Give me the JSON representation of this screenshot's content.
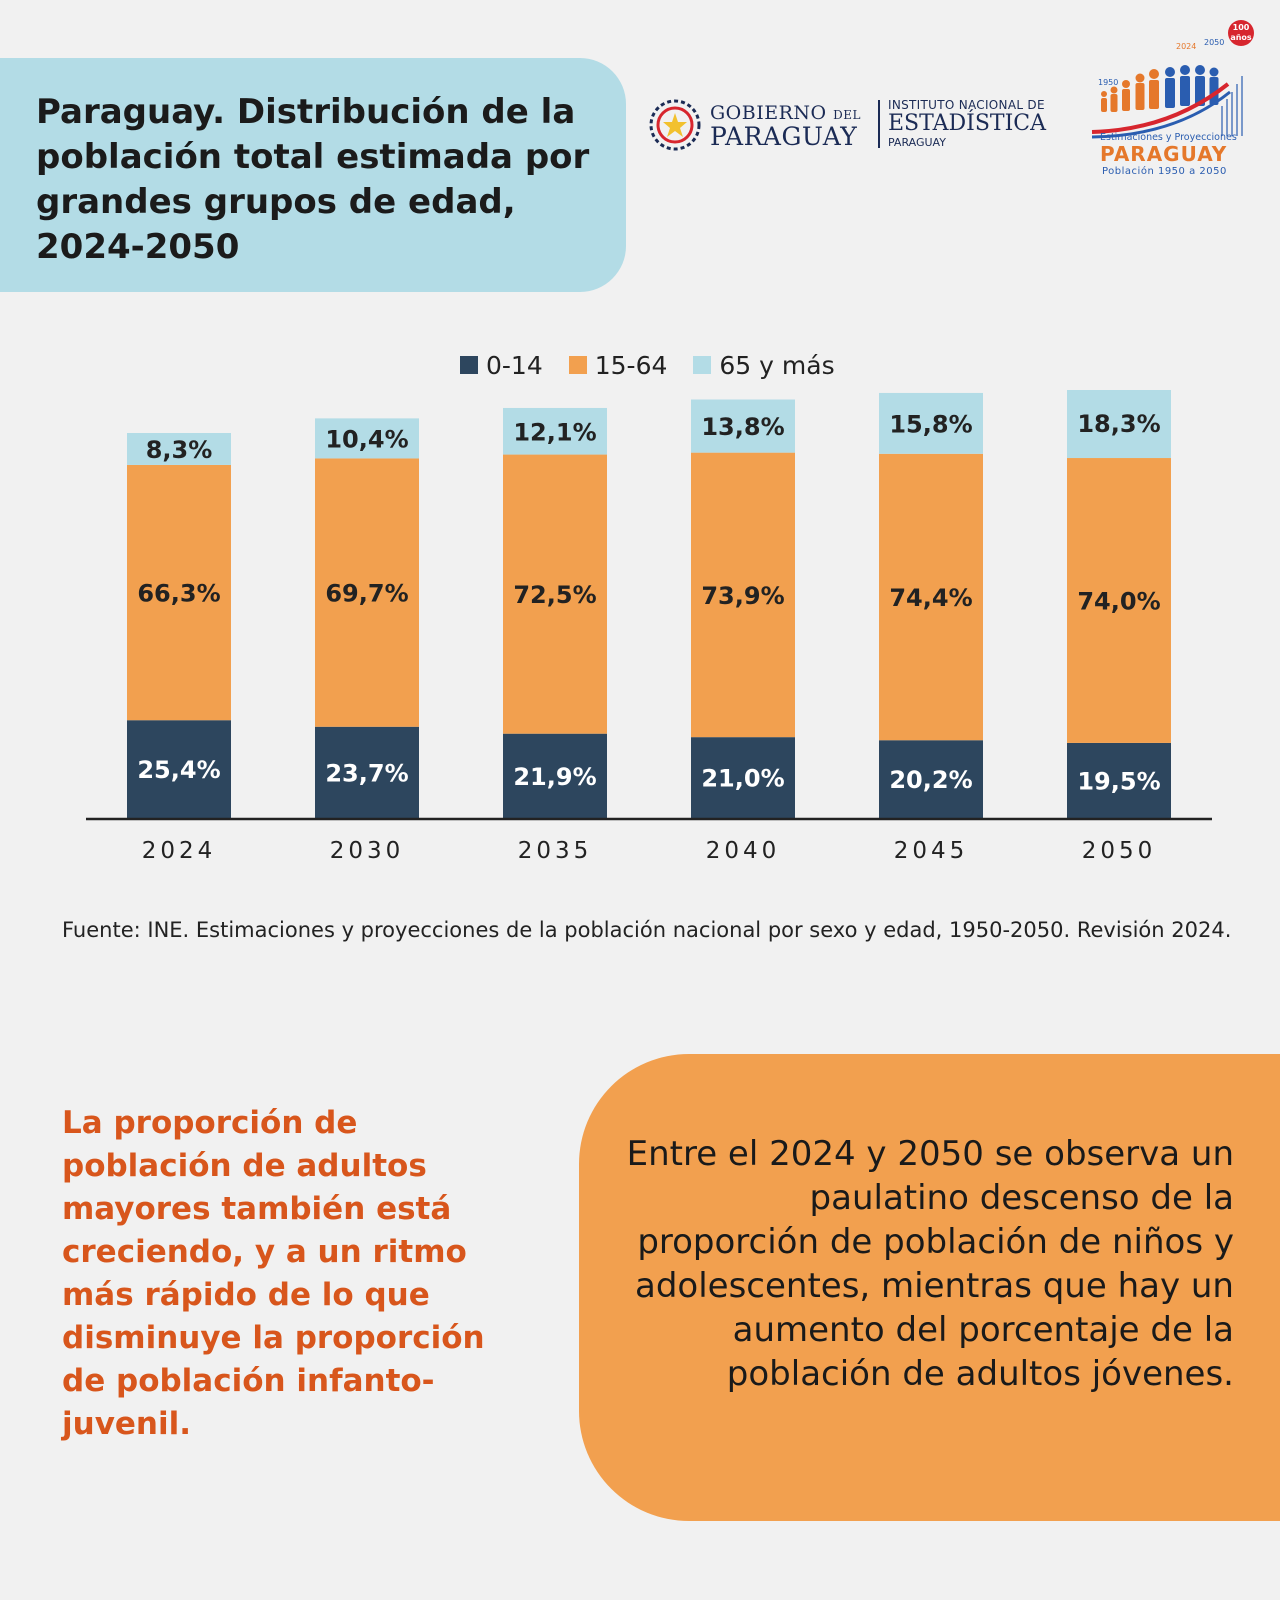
{
  "title": "Paraguay. Distribución de la población total estimada por grandes grupos de edad, 2024-2050",
  "logos": {
    "gobierno_line1": "GOBIERNO",
    "gobierno_del": "DEL",
    "gobierno_line2": "PARAGUAY",
    "ine_line1": "INSTITUTO NACIONAL DE",
    "ine_line2": "ESTADÍSTICA",
    "ine_line3": "PARAGUAY",
    "badge": "100 años",
    "year_start": "1950",
    "year_mid": "2024",
    "year_end": "2050",
    "proj_subtitle": "Estimaciones y Proyecciones",
    "proj_name": "PARAGUAY",
    "proj_range": "Población 1950 a 2050"
  },
  "legend": [
    {
      "label": "0-14",
      "color": "#2d465e"
    },
    {
      "label": "15-64",
      "color": "#f2a04f"
    },
    {
      "label": "65 y más",
      "color": "#b3dce6"
    }
  ],
  "chart_data": {
    "type": "bar",
    "stacked": true,
    "categories": [
      "2024",
      "2030",
      "2035",
      "2040",
      "2045",
      "2050"
    ],
    "series": [
      {
        "name": "0-14",
        "color": "#2d465e",
        "values": [
          25.4,
          23.7,
          21.9,
          21.0,
          20.2,
          19.5
        ],
        "labels": [
          "25,4%",
          "23,7%",
          "21,9%",
          "21,0%",
          "20,2%",
          "19,5%"
        ]
      },
      {
        "name": "15-64",
        "color": "#f2a04f",
        "values": [
          66.3,
          69.7,
          72.5,
          73.9,
          74.4,
          74.0
        ],
        "labels": [
          "66,3%",
          "69,7%",
          "72,5%",
          "73,9%",
          "74,4%",
          "74,0%"
        ]
      },
      {
        "name": "65 y más",
        "color": "#b3dce6",
        "values": [
          8.3,
          10.4,
          12.1,
          13.8,
          15.8,
          18.3
        ],
        "labels": [
          "8,3%",
          "10,4%",
          "12,1%",
          "13,8%",
          "15,8%",
          "18,3%"
        ]
      }
    ],
    "ylim": [
      0,
      115
    ],
    "grid": false,
    "legend_position": "top"
  },
  "source": "Fuente: INE. Estimaciones y proyecciones de la población nacional por sexo y edad, 1950-2050. Revisión 2024.",
  "left_note": "La proporción de población de adultos mayores también está creciendo, y a un ritmo más rápido de lo que disminuye la proporción de población infanto-juvenil.",
  "right_note": "Entre el 2024 y 2050 se observa un paulatino descenso de la proporción de población de niños y adolescentes, mientras que hay un aumento del porcentaje de la población de adultos jóvenes."
}
